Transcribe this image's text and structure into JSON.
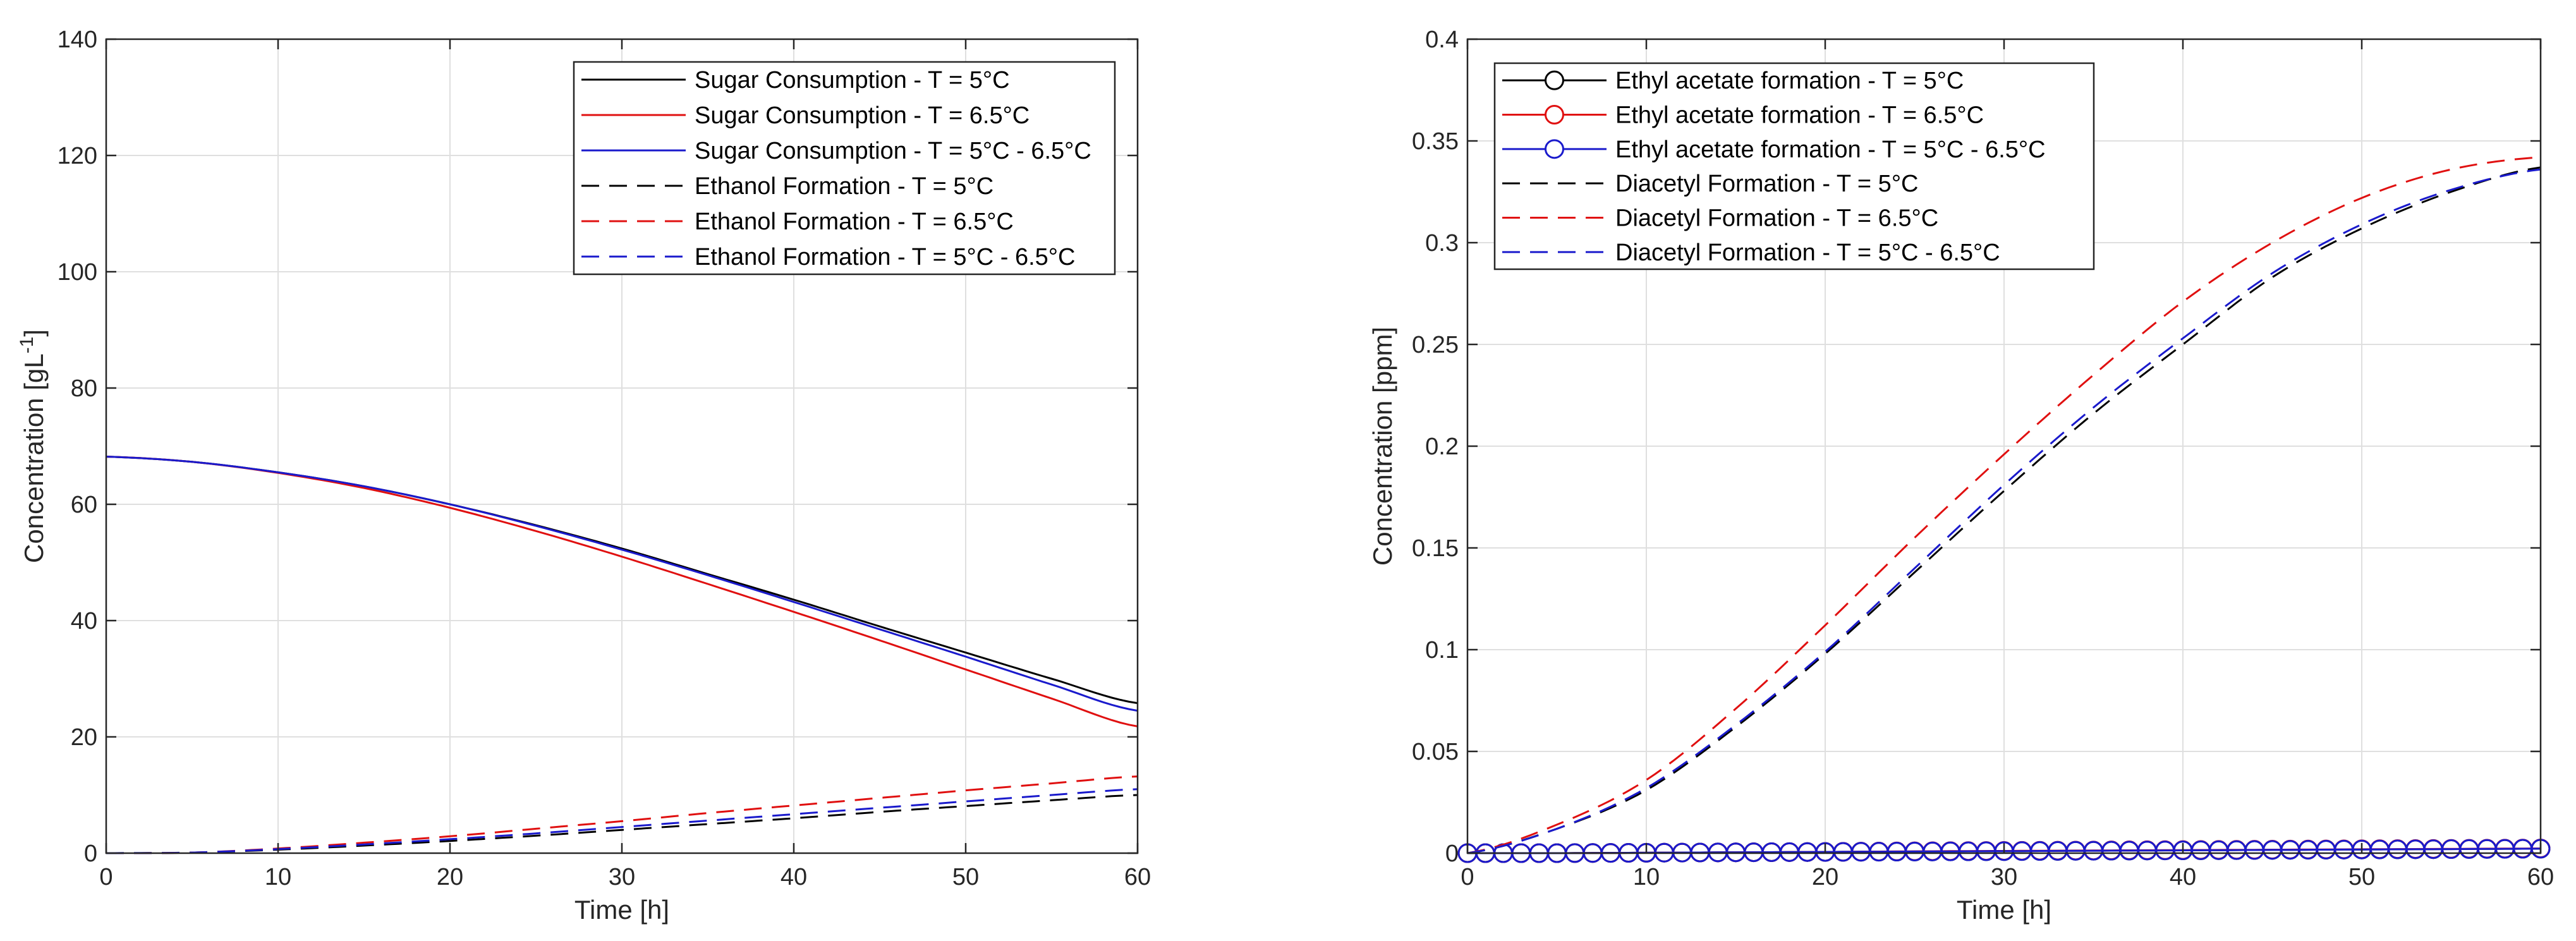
{
  "chart_data": [
    {
      "type": "line",
      "xlabel": "Time [h]",
      "ylabel": "Concentration [gL",
      "ylabel_sup": "-1",
      "ylabel_end": "]",
      "xlim": [
        0,
        60
      ],
      "ylim": [
        0,
        140
      ],
      "xticks": [
        0,
        10,
        20,
        30,
        40,
        50,
        60
      ],
      "yticks": [
        0,
        20,
        40,
        60,
        80,
        100,
        120,
        140
      ],
      "grid": true,
      "legend_position": "top-right",
      "x": [
        0,
        5,
        10,
        15,
        20,
        25,
        30,
        35,
        40,
        45,
        50,
        55,
        60
      ],
      "series": [
        {
          "name": "Sugar Consumption - T = 5°C",
          "color": "#000000",
          "style": "solid",
          "values": [
            68.2,
            67.3,
            65.5,
            63.1,
            60.0,
            56.4,
            52.4,
            48.0,
            43.6,
            39.0,
            34.5,
            30.0,
            25.8
          ]
        },
        {
          "name": "Sugar Consumption - T = 6.5°C",
          "color": "#e01010",
          "style": "solid",
          "values": [
            68.2,
            67.3,
            65.4,
            62.8,
            59.4,
            55.4,
            51.0,
            46.3,
            41.5,
            36.6,
            31.6,
            26.6,
            21.8
          ]
        },
        {
          "name": "Sugar Consumption - T = 5°C - 6.5°C",
          "color": "#1a1acc",
          "style": "solid",
          "values": [
            68.2,
            67.3,
            65.5,
            63.1,
            60.0,
            56.3,
            52.2,
            47.8,
            43.2,
            38.5,
            33.8,
            29.0,
            24.5
          ]
        },
        {
          "name": "Ethanol Formation - T = 5°C",
          "color": "#000000",
          "style": "dashed",
          "values": [
            0.0,
            0.1,
            0.6,
            1.3,
            2.1,
            3.0,
            4.0,
            5.0,
            6.0,
            7.1,
            8.1,
            9.1,
            10.0
          ]
        },
        {
          "name": "Ethanol Formation - T = 6.5°C",
          "color": "#e01010",
          "style": "dashed",
          "values": [
            0.0,
            0.1,
            0.8,
            1.8,
            2.9,
            4.2,
            5.5,
            6.9,
            8.2,
            9.5,
            10.8,
            12.0,
            13.2
          ]
        },
        {
          "name": "Ethanol Formation - T = 5°C - 6.5°C",
          "color": "#1a1acc",
          "style": "dashed",
          "values": [
            0.0,
            0.1,
            0.7,
            1.5,
            2.4,
            3.4,
            4.5,
            5.6,
            6.7,
            7.8,
            8.9,
            10.0,
            11.0
          ]
        }
      ]
    },
    {
      "type": "line",
      "xlabel": "Time [h]",
      "ylabel": "Concentration [ppm]",
      "xlim": [
        0,
        60
      ],
      "ylim": [
        0,
        0.4
      ],
      "xticks": [
        0,
        10,
        20,
        30,
        40,
        50,
        60
      ],
      "yticks": [
        0,
        0.05,
        0.1,
        0.15,
        0.2,
        0.25,
        0.3,
        0.35,
        0.4
      ],
      "ytick_labels": [
        "0",
        "0.05",
        "0.1",
        "0.15",
        "0.2",
        "0.25",
        "0.3",
        "0.35",
        "0.4"
      ],
      "grid": true,
      "legend_position": "top-left",
      "x": [
        0,
        5,
        10,
        15,
        20,
        25,
        30,
        35,
        40,
        45,
        50,
        55,
        60
      ],
      "series": [
        {
          "name": "Ethyl acetate formation - T = 5°C",
          "color": "#000000",
          "style": "marker-circle",
          "values": [
            0.0,
            0.0,
            0.0002,
            0.0004,
            0.0006,
            0.0008,
            0.001,
            0.0012,
            0.0014,
            0.0016,
            0.0018,
            0.002,
            0.0022
          ]
        },
        {
          "name": "Ethyl acetate formation - T = 6.5°C",
          "color": "#e01010",
          "style": "marker-circle",
          "values": [
            0.0,
            0.0,
            0.0002,
            0.0004,
            0.0006,
            0.0009,
            0.0011,
            0.0013,
            0.0015,
            0.0017,
            0.0019,
            0.0021,
            0.0023
          ]
        },
        {
          "name": "Ethyl acetate formation - T = 5°C - 6.5°C",
          "color": "#1a1acc",
          "style": "marker-circle",
          "values": [
            0.0,
            0.0,
            0.0002,
            0.0004,
            0.0006,
            0.0008,
            0.001,
            0.0012,
            0.0014,
            0.0016,
            0.0018,
            0.002,
            0.0022
          ]
        },
        {
          "name": "Diacetyl Formation - T = 5°C",
          "color": "#000000",
          "style": "dashed",
          "values": [
            0.0,
            0.012,
            0.031,
            0.062,
            0.098,
            0.138,
            0.178,
            0.216,
            0.25,
            0.283,
            0.307,
            0.325,
            0.337
          ]
        },
        {
          "name": "Diacetyl Formation - T = 6.5°C",
          "color": "#e01010",
          "style": "dashed",
          "values": [
            0.0,
            0.014,
            0.036,
            0.071,
            0.112,
            0.155,
            0.196,
            0.235,
            0.271,
            0.3,
            0.322,
            0.336,
            0.342
          ]
        },
        {
          "name": "Diacetyl Formation - T = 5°C - 6.5°C",
          "color": "#1a1acc",
          "style": "dashed",
          "values": [
            0.0,
            0.012,
            0.032,
            0.063,
            0.099,
            0.14,
            0.181,
            0.219,
            0.253,
            0.285,
            0.309,
            0.326,
            0.336
          ]
        }
      ]
    }
  ]
}
